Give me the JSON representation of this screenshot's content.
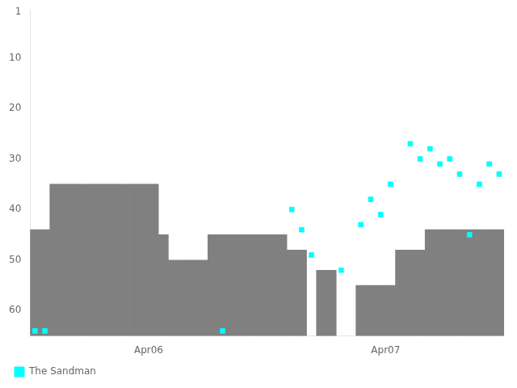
{
  "chart_data": {
    "type": "bar",
    "series": [
      {
        "type": "bar",
        "color": "#808080",
        "x": [
          0.5,
          1.5,
          2.5,
          3.5,
          4.5,
          5.5,
          6.5,
          7.5,
          8.5,
          9.5,
          10.5,
          11.5,
          12.5,
          13.5,
          14.5,
          15.5,
          16.5,
          17.5,
          18.5,
          19.5,
          20.5,
          21.5,
          22.5,
          23.5,
          24.5,
          25.5,
          26.5,
          27.5,
          29.5,
          30.5,
          33.5,
          34.5,
          35.5,
          36.5,
          37.5,
          38.5,
          39.5,
          40.5,
          41.5,
          42.5,
          43.5,
          44.5,
          45.5,
          46.5,
          47.5
        ],
        "values": [
          44,
          44,
          35,
          35,
          35,
          35,
          35,
          35,
          35,
          35,
          35,
          35,
          35,
          45,
          50,
          50,
          50,
          50,
          45,
          45,
          45,
          45,
          45,
          45,
          45,
          45,
          48,
          48,
          52,
          52,
          55,
          55,
          55,
          55,
          48,
          48,
          48,
          44,
          44,
          44,
          44,
          44,
          44,
          44,
          44
        ]
      },
      {
        "type": "scatter",
        "name": "The Sandman",
        "color": "#00ffff",
        "marker": "square",
        "x": [
          0.5,
          1.5,
          19.5,
          26.5,
          27.5,
          28.5,
          31.5,
          33.5,
          34.5,
          35.5,
          36.5,
          38.5,
          39.5,
          40.5,
          41.5,
          42.5,
          43.5,
          44.5,
          45.5,
          46.5,
          47.5
        ],
        "values": [
          64,
          64,
          64,
          40,
          44,
          49,
          52,
          43,
          38,
          41,
          35,
          27,
          30,
          28,
          31,
          30,
          33,
          45,
          35,
          31,
          33
        ]
      }
    ],
    "xlim": [
      0,
      48
    ],
    "xticks": [
      {
        "value": 12,
        "label": "Apr06"
      },
      {
        "value": 36,
        "label": "Apr07"
      }
    ],
    "ylim": [
      65,
      0.5
    ],
    "yticks": [
      1,
      10,
      20,
      30,
      40,
      50,
      60
    ],
    "grid": false,
    "legend": "lower left"
  }
}
